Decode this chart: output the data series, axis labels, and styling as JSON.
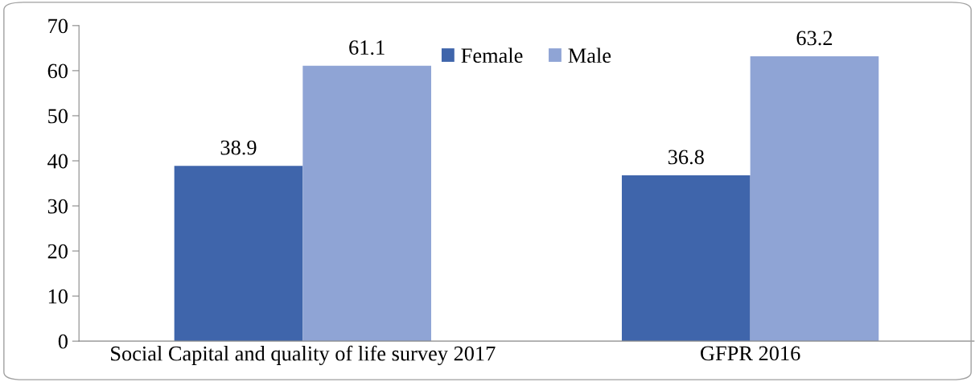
{
  "chart_data": {
    "type": "bar",
    "categories": [
      "Social Capital and quality of life survey 2017",
      "GFPR 2016"
    ],
    "series": [
      {
        "name": "Female",
        "color": "#3f65ab",
        "values": [
          38.9,
          36.8
        ]
      },
      {
        "name": "Male",
        "color": "#8fa4d5",
        "values": [
          61.1,
          63.2
        ]
      }
    ],
    "ylim": [
      0,
      70
    ],
    "yticks": [
      0,
      10,
      20,
      30,
      40,
      50,
      60,
      70
    ],
    "data_labels": true,
    "legend": "top",
    "grid": false
  }
}
